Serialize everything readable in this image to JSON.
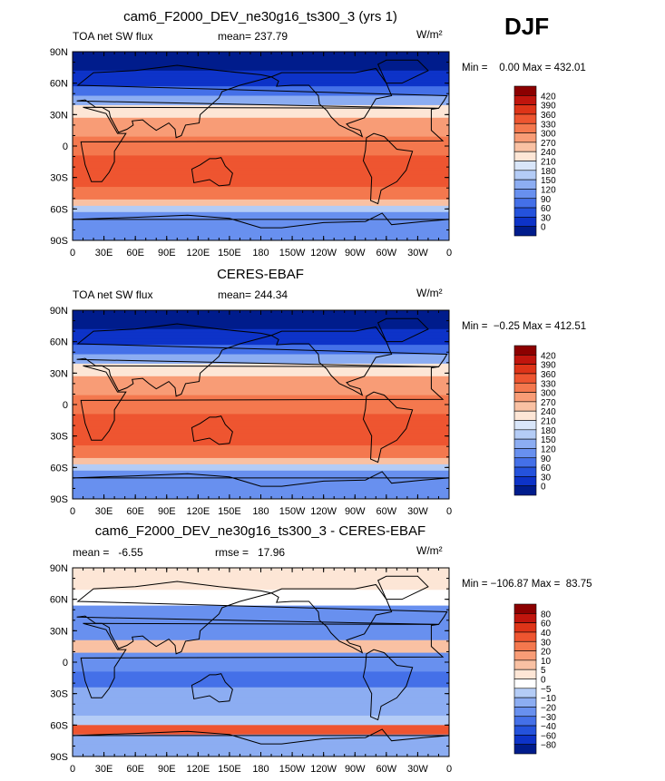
{
  "season": "DJF",
  "panels": [
    {
      "title": "cam6_F2000_DEV_ne30g16_ts300_3 (yrs 1)",
      "left_label": "TOA net SW flux",
      "center_label": "mean= 237.79",
      "units": "W/m²",
      "minmax": "Min =    0.00 Max = 432.01",
      "colorbar_labels": [
        "420",
        "390",
        "360",
        "330",
        "300",
        "270",
        "240",
        "210",
        "180",
        "150",
        "120",
        "90",
        "60",
        "30",
        "0"
      ],
      "colorbar_colors": [
        "#8c0000",
        "#c0150d",
        "#de3418",
        "#ee5530",
        "#f4784e",
        "#f89c76",
        "#f9c1a3",
        "#fde6d6",
        "#d9e6f9",
        "#b4ccf6",
        "#8cadf2",
        "#6890ef",
        "#4470e8",
        "#2452dc",
        "#0d33c8",
        "#001c8c"
      ],
      "colorbar_label_colors": [],
      "yticks": [
        "90N",
        "60N",
        "30N",
        "0",
        "30S",
        "60S",
        "90S"
      ],
      "xticks": [
        "0",
        "30E",
        "60E",
        "90E",
        "120E",
        "150E",
        "180",
        "150W",
        "120W",
        "90W",
        "60W",
        "30W",
        "0"
      ]
    },
    {
      "title": "CERES-EBAF",
      "left_label": "TOA net SW flux",
      "center_label": "mean= 244.34",
      "units": "W/m²",
      "minmax": "Min =  −0.25 Max = 412.51",
      "colorbar_labels": [
        "420",
        "390",
        "360",
        "330",
        "300",
        "270",
        "240",
        "210",
        "180",
        "150",
        "120",
        "90",
        "60",
        "30",
        "0"
      ],
      "colorbar_colors": [
        "#8c0000",
        "#c0150d",
        "#de3418",
        "#ee5530",
        "#f4784e",
        "#f89c76",
        "#f9c1a3",
        "#fde6d6",
        "#d9e6f9",
        "#b4ccf6",
        "#8cadf2",
        "#6890ef",
        "#4470e8",
        "#2452dc",
        "#0d33c8",
        "#001c8c"
      ],
      "yticks": [
        "90N",
        "60N",
        "30N",
        "0",
        "30S",
        "60S",
        "90S"
      ],
      "xticks": [
        "0",
        "30E",
        "60E",
        "90E",
        "120E",
        "150E",
        "180",
        "150W",
        "120W",
        "90W",
        "60W",
        "30W",
        "0"
      ]
    },
    {
      "title": "cam6_F2000_DEV_ne30g16_ts300_3 - CERES-EBAF",
      "left_label": "mean =   -6.55",
      "center_label": "rmse =   17.96",
      "units": "W/m²",
      "minmax": "Min = −106.87 Max =  83.75",
      "colorbar_labels": [
        "80",
        "60",
        "40",
        "30",
        "20",
        "10",
        "5",
        "0",
        "−5",
        "−10",
        "−20",
        "−30",
        "−40",
        "−60",
        "−80"
      ],
      "colorbar_colors": [
        "#8c0000",
        "#c0150d",
        "#de3418",
        "#ee5530",
        "#f4784e",
        "#f89c76",
        "#f9c1a3",
        "#fde6d6",
        "#ffffff",
        "#b4ccf6",
        "#8cadf2",
        "#6890ef",
        "#4470e8",
        "#2452dc",
        "#0d33c8",
        "#001c8c"
      ],
      "yticks": [
        "90N",
        "60N",
        "30N",
        "0",
        "30S",
        "60S",
        "90S"
      ],
      "xticks": [
        "0",
        "30E",
        "60E",
        "90E",
        "120E",
        "150E",
        "180",
        "150W",
        "120W",
        "90W",
        "60W",
        "30W",
        "0"
      ]
    }
  ]
}
